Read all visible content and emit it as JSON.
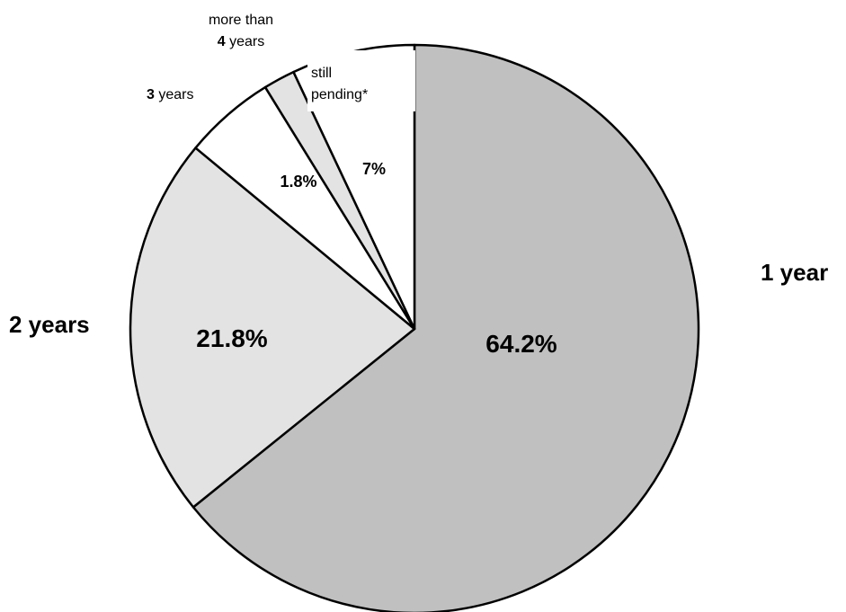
{
  "chart_data": {
    "type": "pie",
    "slices": [
      {
        "name": "1 year",
        "value": 64.2,
        "value_label": "64.2%",
        "color": "#c0c0c0"
      },
      {
        "name": "2 years",
        "value": 21.8,
        "value_label": "21.8%",
        "color": "#e3e3e3"
      },
      {
        "name": "3 years",
        "value": 5.2,
        "value_label": "",
        "color": "#ffffff"
      },
      {
        "name": "more than 4 years",
        "value": 1.8,
        "value_label": "1.8%",
        "color": "#e3e3e3"
      },
      {
        "name": "still pending*",
        "value": 7.0,
        "value_label": "7%",
        "color": "#ffffff"
      }
    ],
    "labels": {
      "one_year": "1 year",
      "two_years": "2 years",
      "three_num": "3",
      "three_text": " years",
      "more_than": "more than",
      "four_num": "4",
      "four_text": " years",
      "still": "still",
      "pending": "pending*"
    },
    "start_angle": "12 o'clock",
    "direction": "clockwise",
    "border_color": "#000000"
  }
}
